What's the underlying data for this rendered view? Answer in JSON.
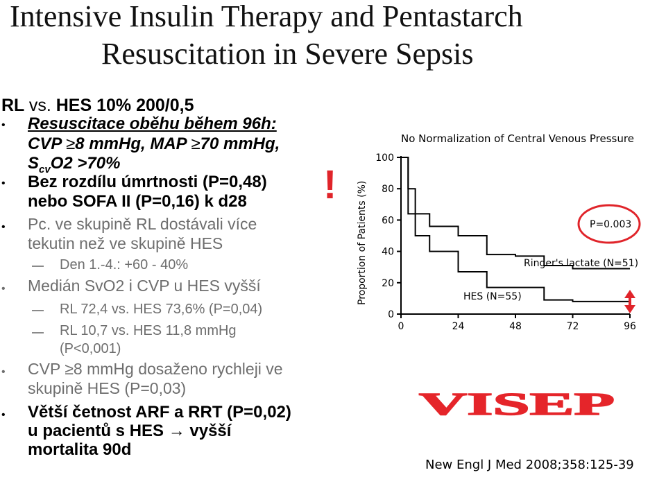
{
  "title": {
    "line1": "Intensive Insulin Therapy and Pentastarch",
    "line2": "Resuscitation in Severe Sepsis"
  },
  "left": {
    "heading": {
      "part1": "RL",
      "part2": "vs.",
      "part3": "HES 10% 200/0,5"
    },
    "bullet1": {
      "line1": "Resuscitace oběhu během 96h:",
      "line2_pre": "CVP ",
      "line2_ge": "≥",
      "line2_mid": "8 mmHg, MAP ",
      "line2_ge2": "≥",
      "line2_post": "70 mmHg,",
      "line3_s": "S",
      "line3_sub": "cv",
      "line3_post": "O2 >70%"
    },
    "bullet2": {
      "line1": "Bez rozdílu úmrtnosti (P=0,48)",
      "line2": "nebo SOFA II (P=0,16) k d28"
    },
    "bullet3": {
      "line1": "Pc. ve skupině RL dostávali více",
      "line2": "tekutin než ve skupině HES"
    },
    "sub3": "Den 1.-4.: +60 - 40%",
    "bullet4": "Medián SvO2 i CVP u HES vyšší",
    "sub4a": "RL 72,4 vs. HES 73,6% (P=0,04)",
    "sub4b": {
      "line1": "RL 10,7 vs. HES 11,8 mmHg",
      "line2": "(P<0,001)"
    },
    "bullet5": {
      "line1_pre": "CVP ",
      "line1_ge": "≥",
      "line1_post": "8 mmHg dosaženo rychleji ve",
      "line2": "skupině HES (P=0,03)"
    },
    "bullet6": {
      "line1": "Větší četnost ARF a RRT (P=0,02)",
      "line2_pre": "u pacientů s HES ",
      "line2_arrow": "→",
      "line2_post": " vyšší",
      "line3": "mortalita 90d"
    },
    "bullet_char": "•",
    "exclamation": "!"
  },
  "chart_data": {
    "type": "line",
    "title": "No Normalization of Central Venous Pressure",
    "ylabel": "Proportion of Patients (%)",
    "xlabel": "",
    "x_ticks": [
      "0",
      "24",
      "48",
      "72",
      "96"
    ],
    "y_ticks": [
      "0",
      "20",
      "40",
      "60",
      "80",
      "100"
    ],
    "xlim": [
      0,
      96
    ],
    "ylim": [
      0,
      100
    ],
    "series": [
      {
        "name": "Ringer's lactate (N=51)",
        "x": [
          0,
          3,
          6,
          12,
          24,
          36,
          48,
          60,
          72,
          96
        ],
        "y": [
          100,
          80,
          64,
          56,
          50,
          38,
          37,
          31,
          29,
          29
        ]
      },
      {
        "name": "HES (N=55)",
        "x": [
          0,
          3,
          6,
          12,
          24,
          36,
          48,
          60,
          72,
          96
        ],
        "y": [
          100,
          64,
          50,
          40,
          27,
          17,
          17,
          9,
          8,
          8
        ]
      }
    ],
    "annotation": "P=0.003",
    "highlight_color": "#e0242a",
    "grid": false
  },
  "logo": "VISEP",
  "logo_color": "#e5252a",
  "citation": "New Engl J Med 2008;358:125-39"
}
